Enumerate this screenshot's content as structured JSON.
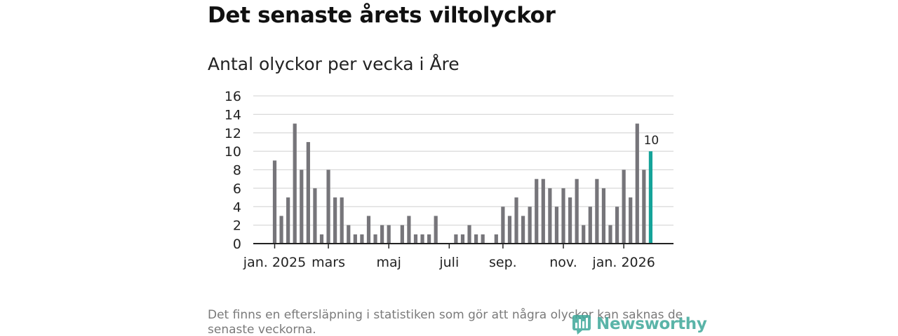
{
  "title": "Det senaste årets viltolyckor",
  "subtitle": "Antal olyckor per vecka i Åre",
  "footnote": "Det finns en eftersläpning i statistiken som gör att några olyckor kan saknas de senaste veckorna.",
  "logo": {
    "text": "Newsworthy",
    "icon": "newsworthy-logo-icon",
    "color": "#3ea89a"
  },
  "colors": {
    "bar": "#76757a",
    "highlight": "#15a399",
    "grid": "#d9d9d9",
    "axis": "#222222"
  },
  "chart_data": {
    "type": "bar",
    "title": "Antal olyckor per vecka i Åre",
    "xlabel": "",
    "ylabel": "",
    "ylim": [
      0,
      16
    ],
    "yticks": [
      "0",
      "2",
      "4",
      "6",
      "8",
      "10",
      "12",
      "14",
      "16"
    ],
    "xticks": [
      {
        "label": "jan. 2025",
        "index": 0
      },
      {
        "label": "mars",
        "index": 8
      },
      {
        "label": "maj",
        "index": 17
      },
      {
        "label": "juli",
        "index": 26
      },
      {
        "label": "sep.",
        "index": 34
      },
      {
        "label": "nov.",
        "index": 43
      },
      {
        "label": "jan. 2026",
        "index": 52
      }
    ],
    "values": [
      9,
      3,
      5,
      13,
      8,
      11,
      6,
      1,
      8,
      5,
      5,
      2,
      1,
      1,
      3,
      1,
      2,
      2,
      0,
      2,
      3,
      1,
      1,
      1,
      3,
      0,
      0,
      1,
      1,
      2,
      1,
      1,
      0,
      1,
      4,
      3,
      5,
      3,
      4,
      7,
      7,
      6,
      4,
      6,
      5,
      7,
      2,
      4,
      7,
      6,
      2,
      4,
      8,
      5,
      13,
      8,
      10
    ],
    "highlight_index": 56,
    "highlight_label": "10",
    "grid": true
  }
}
